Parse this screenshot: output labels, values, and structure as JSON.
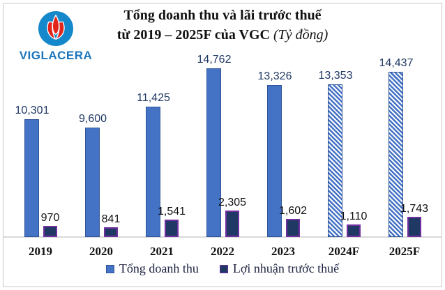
{
  "logo": {
    "brand": "VIGLACERA"
  },
  "title": {
    "line1": "Tổng doanh thu và lãi trước thuế",
    "line2_main": "từ 2019 – 2025F của VGC",
    "line2_unit": "(Tỷ đồng)"
  },
  "chart_data": {
    "type": "bar",
    "title": "Tổng doanh thu và lãi trước thuế từ 2019 – 2025F của VGC",
    "unit": "Tỷ đồng",
    "categories": [
      "2019",
      "2020",
      "2021",
      "2022",
      "2023",
      "2024F",
      "2025F"
    ],
    "forecast_categories": [
      "2024F",
      "2025F"
    ],
    "series": [
      {
        "name": "Tổng doanh thu",
        "values": [
          10301,
          9600,
          11425,
          14762,
          13326,
          13353,
          14437
        ],
        "labels": [
          "10,301",
          "9,600",
          "11,425",
          "14,762",
          "13,326",
          "13,353",
          "14,437"
        ],
        "color": "#4472C4",
        "border_color": "#2F5597",
        "forecast_pattern": "diagonal-hatch"
      },
      {
        "name": "Lợi nhuận trước thuế",
        "values": [
          970,
          841,
          1541,
          2305,
          1602,
          1110,
          1743
        ],
        "labels": [
          "970",
          "841",
          "1,541",
          "2,305",
          "1,602",
          "1,110",
          "1,743"
        ],
        "color": "#1F3864",
        "border_color": "#7030A0",
        "forecast_pattern": "white-dots"
      }
    ],
    "ylim": [
      0,
      15000
    ],
    "grid": false,
    "y_axis_visible": false,
    "legend_position": "bottom"
  },
  "colors": {
    "revenue_fill": "#4472C4",
    "revenue_border": "#2F5597",
    "profit_fill": "#1F3864",
    "profit_border": "#7030A0",
    "revenue_label_text": "#1F3864",
    "profit_label_text": "#111111",
    "axis_line": "#D9D9D9",
    "frame_border": "#C6C6C6",
    "logo_circle_blue": "#1488CA",
    "logo_flame_red": "#E1251B",
    "logo_text_blue": "#1B75BC"
  }
}
